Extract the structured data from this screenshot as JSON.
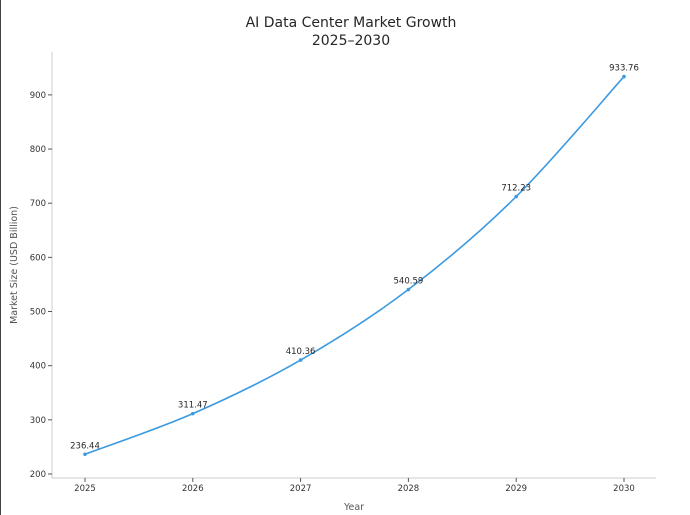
{
  "chart_data": {
    "type": "line",
    "title": "AI Data Center Market Growth",
    "subtitle": "2025–2030",
    "xlabel": "Year",
    "ylabel": "Market Size (USD Billion)",
    "categories": [
      "2025",
      "2026",
      "2027",
      "2028",
      "2029",
      "2030"
    ],
    "series": [
      {
        "values": [
          236.44,
          311.47,
          410.36,
          540.59,
          712.23,
          933.76
        ],
        "labels": [
          "236.44",
          "311.47",
          "410.36",
          "540.59",
          "712.23",
          "933.76"
        ],
        "color": "#3b9ae1"
      }
    ],
    "yticks": [
      200,
      300,
      400,
      500,
      600,
      700,
      800,
      900
    ],
    "ylim": [
      200,
      975
    ],
    "grid": false,
    "legend": "none"
  }
}
